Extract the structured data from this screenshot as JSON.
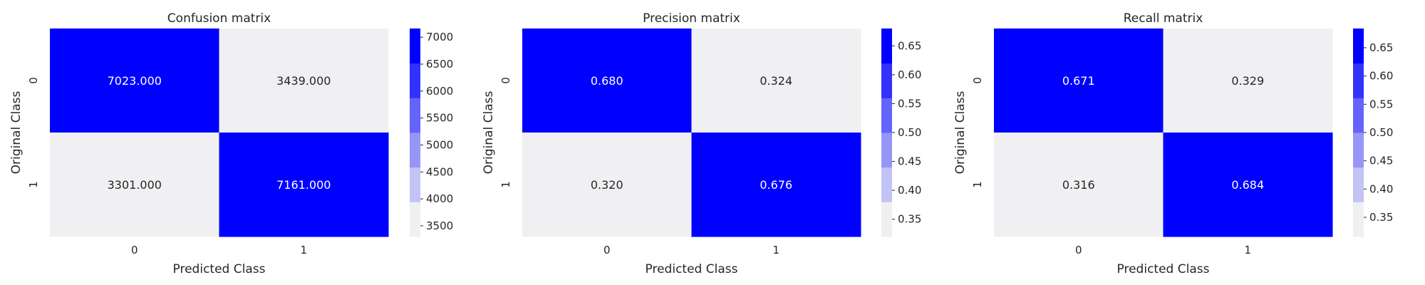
{
  "colors": {
    "high": "#0000ff",
    "low": "#f0f0f3",
    "text_dark": "#262626",
    "text_light": "#ffffff",
    "colorbar_steps": [
      "#f0f0f3",
      "#c3c3f5",
      "#9696f7",
      "#6464fa",
      "#3232fc",
      "#0000ff"
    ]
  },
  "chart_data": [
    {
      "type": "heatmap",
      "title": "Confusion matrix",
      "xlabel": "Predicted Class",
      "ylabel": "Original Class",
      "x_categories": [
        "0",
        "1"
      ],
      "y_categories": [
        "0",
        "1"
      ],
      "values": [
        [
          7023.0,
          3439.0
        ],
        [
          3301.0,
          7161.0
        ]
      ],
      "value_labels": [
        [
          "7023.000",
          "3439.000"
        ],
        [
          "3301.000",
          "7161.000"
        ]
      ],
      "colorbar": {
        "range": [
          3301,
          7161
        ],
        "ticks": [
          3500,
          4000,
          4500,
          5000,
          5500,
          6000,
          6500,
          7000
        ],
        "tick_labels": [
          "3500",
          "4000",
          "4500",
          "5000",
          "5500",
          "6000",
          "6500",
          "7000"
        ]
      }
    },
    {
      "type": "heatmap",
      "title": "Precision matrix",
      "xlabel": "Predicted Class",
      "ylabel": "Original Class",
      "x_categories": [
        "0",
        "1"
      ],
      "y_categories": [
        "0",
        "1"
      ],
      "values": [
        [
          0.68,
          0.324
        ],
        [
          0.32,
          0.676
        ]
      ],
      "value_labels": [
        [
          "0.680",
          "0.324"
        ],
        [
          "0.320",
          "0.676"
        ]
      ],
      "colorbar": {
        "range": [
          0.32,
          0.68
        ],
        "ticks": [
          0.35,
          0.4,
          0.45,
          0.5,
          0.55,
          0.6,
          0.65
        ],
        "tick_labels": [
          "0.35",
          "0.40",
          "0.45",
          "0.50",
          "0.55",
          "0.60",
          "0.65"
        ]
      }
    },
    {
      "type": "heatmap",
      "title": "Recall matrix",
      "xlabel": "Predicted Class",
      "ylabel": "Original Class",
      "x_categories": [
        "0",
        "1"
      ],
      "y_categories": [
        "0",
        "1"
      ],
      "values": [
        [
          0.671,
          0.329
        ],
        [
          0.316,
          0.684
        ]
      ],
      "value_labels": [
        [
          "0.671",
          "0.329"
        ],
        [
          "0.316",
          "0.684"
        ]
      ],
      "colorbar": {
        "range": [
          0.316,
          0.684
        ],
        "ticks": [
          0.35,
          0.4,
          0.45,
          0.5,
          0.55,
          0.6,
          0.65
        ],
        "tick_labels": [
          "0.35",
          "0.40",
          "0.45",
          "0.50",
          "0.55",
          "0.60",
          "0.65"
        ]
      }
    }
  ]
}
